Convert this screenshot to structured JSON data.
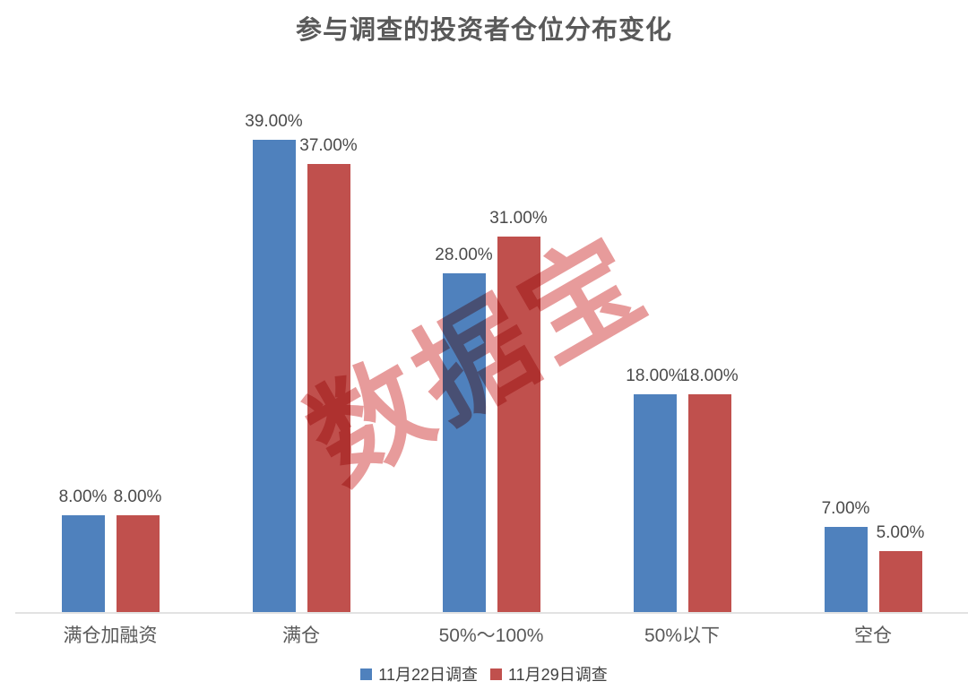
{
  "chart_data": {
    "type": "bar",
    "title": "参与调查的投资者仓位分布变化",
    "categories": [
      "满仓加融资",
      "满仓",
      "50%～100%",
      "50%以下",
      "空仓"
    ],
    "series": [
      {
        "name": "11月22日调查",
        "color": "#4F81BD",
        "values": [
          8,
          39,
          28,
          18,
          7
        ],
        "labels": [
          "8.00%",
          "39.00%",
          "28.00%",
          "18.00%",
          "7.00%"
        ]
      },
      {
        "name": "11月29日调查",
        "color": "#C0504D",
        "values": [
          8,
          37,
          31,
          18,
          5
        ],
        "labels": [
          "8.00%",
          "37.00%",
          "31.00%",
          "18.00%",
          "5.00%"
        ]
      }
    ],
    "xlabel": "",
    "ylabel": "",
    "ylim": [
      0,
      45
    ],
    "grid": false,
    "y_axis_visible": false,
    "value_label_format": "0.00%",
    "legend_position": "bottom"
  },
  "watermark": {
    "text": "数据宝",
    "color": "#D34848"
  },
  "axis": {
    "line_color": "#E2E2E2",
    "label_color": "#595959"
  }
}
